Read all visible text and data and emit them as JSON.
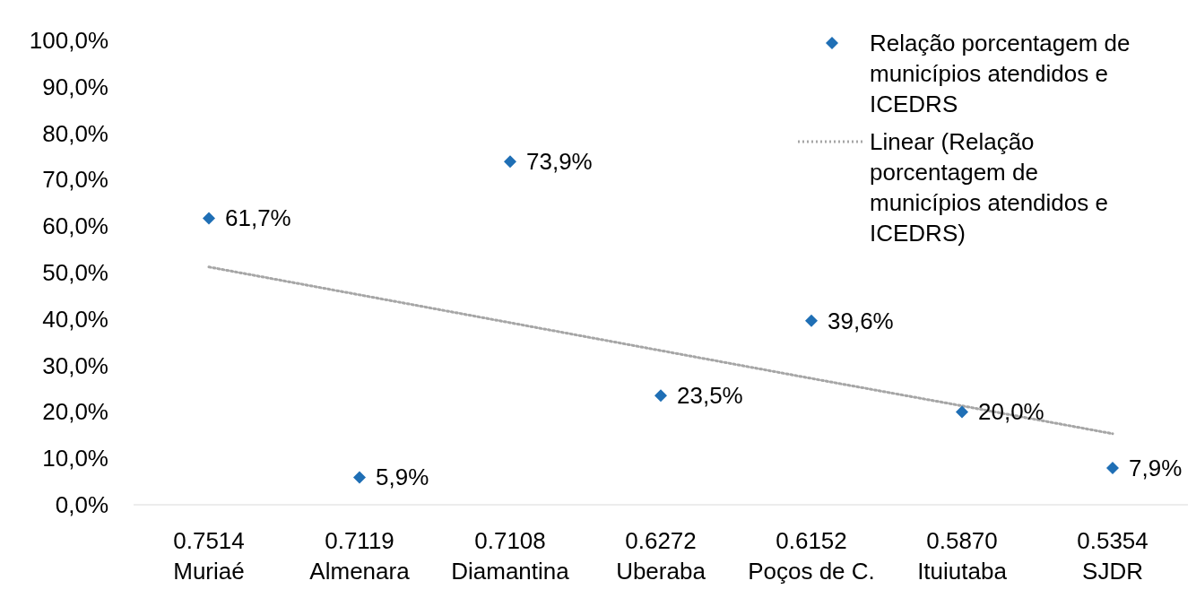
{
  "chart_data": {
    "type": "scatter",
    "categories": [
      "0.7514\nMuriaé",
      "0.7119\nAlmenara",
      "0.7108\nDiamantina",
      "0.6272\nUberaba",
      "0.6152\nPoços de C.",
      "0.5870\nItuiutaba",
      "0.5354\nSJDR"
    ],
    "series": [
      {
        "name": "Relação porcentagem de municípios atendidos e ICEDRS",
        "color": "#1f6fb5",
        "marker": "diamond",
        "values": [
          61.7,
          5.9,
          73.9,
          23.5,
          39.6,
          20.0,
          7.9
        ],
        "value_labels": [
          "61,7%",
          "5,9%",
          "73,9%",
          "23,5%",
          "39,6%",
          "20,0%",
          "7,9%"
        ]
      },
      {
        "name": "Linear (Relação porcentagem de municípios atendidos e ICEDRS)",
        "type": "line",
        "color": "#a6a6a6",
        "line_style": "dotted",
        "marker": "none",
        "values": [
          51.2,
          45.2,
          39.2,
          33.2,
          27.2,
          21.3,
          15.3
        ]
      }
    ],
    "ylim": [
      0,
      100
    ],
    "yticks": [
      {
        "value": 0,
        "label": "0,0%"
      },
      {
        "value": 10,
        "label": "10,0%"
      },
      {
        "value": 20,
        "label": "20,0%"
      },
      {
        "value": 30,
        "label": "30,0%"
      },
      {
        "value": 40,
        "label": "40,0%"
      },
      {
        "value": 50,
        "label": "50,0%"
      },
      {
        "value": 60,
        "label": "60,0%"
      },
      {
        "value": 70,
        "label": "70,0%"
      },
      {
        "value": 80,
        "label": "80,0%"
      },
      {
        "value": 90,
        "label": "90,0%"
      },
      {
        "value": 100,
        "label": "100,0%"
      }
    ],
    "grid": false,
    "legend": "top right"
  }
}
